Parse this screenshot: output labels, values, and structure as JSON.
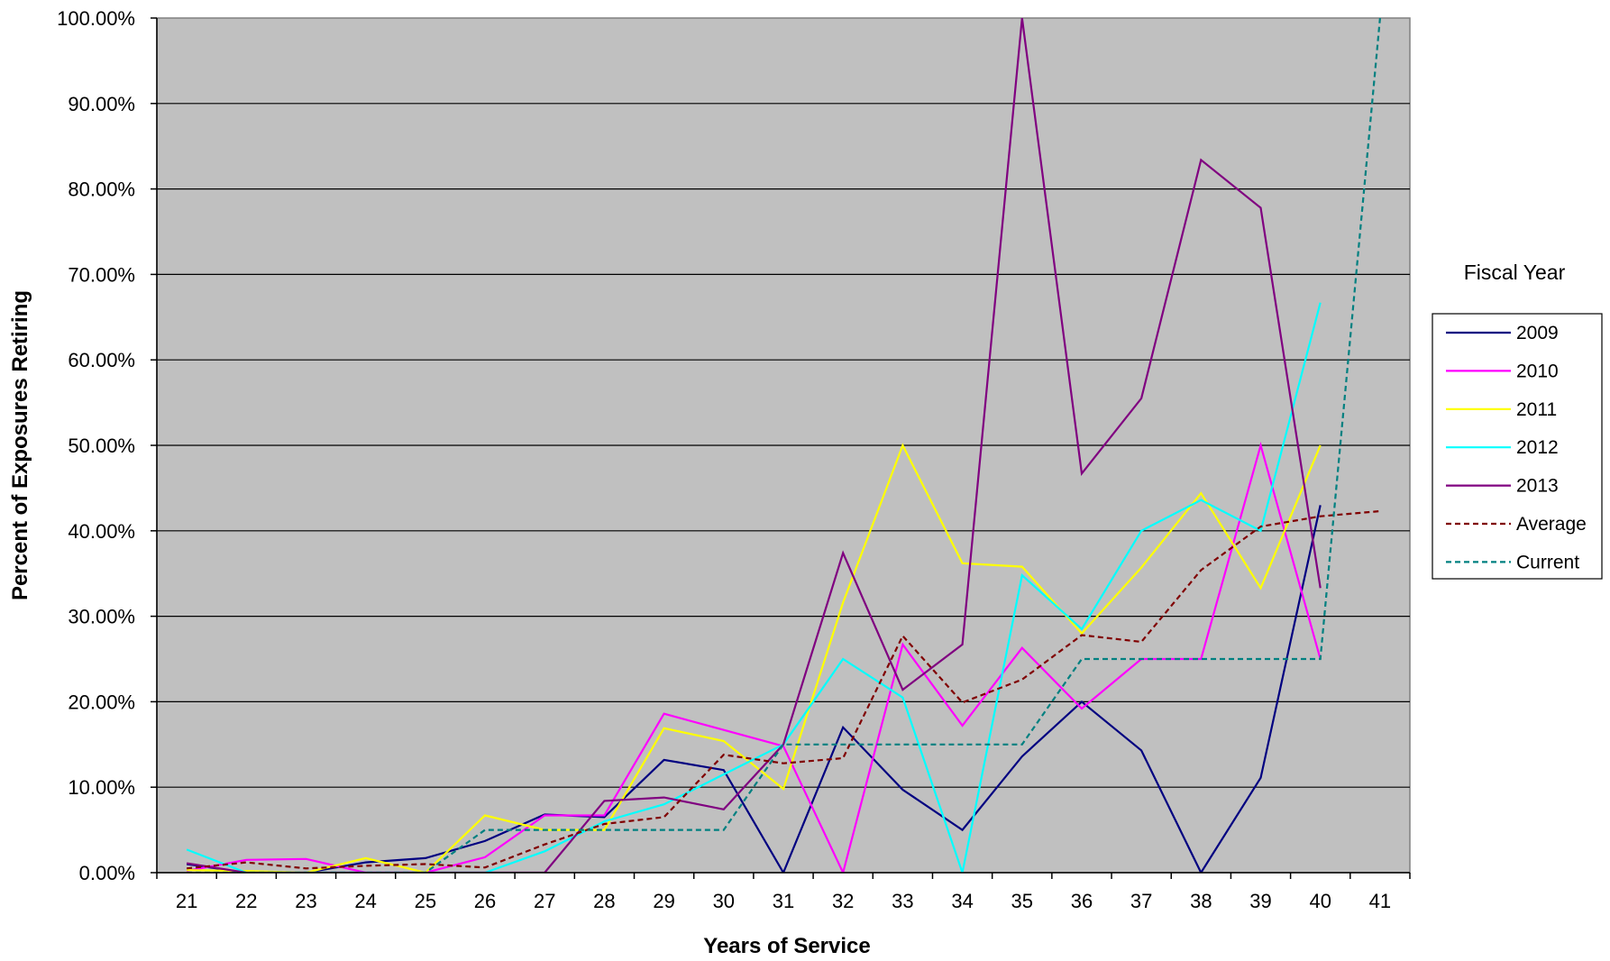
{
  "chart_data": {
    "type": "line",
    "title": "",
    "xlabel": "Years of Service",
    "ylabel": "Percent of Exposures Retiring",
    "categories": [
      "21",
      "22",
      "23",
      "24",
      "25",
      "26",
      "27",
      "28",
      "29",
      "30",
      "31",
      "32",
      "33",
      "34",
      "35",
      "36",
      "37",
      "38",
      "39",
      "40",
      "41"
    ],
    "y_ticks": [
      "0.00%",
      "10.00%",
      "20.00%",
      "30.00%",
      "40.00%",
      "50.00%",
      "60.00%",
      "70.00%",
      "80.00%",
      "90.00%",
      "100.00%"
    ],
    "ylim": [
      0,
      100
    ],
    "grid": true,
    "plot_background": "#c0c0c0",
    "legend": {
      "title": "Fiscal Year",
      "position": "right"
    },
    "series": [
      {
        "name": "2009",
        "color": "#000080",
        "dash": "solid",
        "values": [
          1.0,
          0.0,
          0.0,
          1.2,
          1.7,
          3.7,
          6.8,
          6.5,
          13.2,
          12.0,
          0.0,
          17.0,
          9.7,
          5.0,
          13.6,
          20.0,
          14.3,
          0.0,
          11.1,
          43.0,
          null
        ]
      },
      {
        "name": "2010",
        "color": "#ff00ff",
        "dash": "solid",
        "values": [
          0.2,
          1.5,
          1.6,
          0.0,
          0.0,
          1.8,
          6.7,
          6.7,
          18.6,
          16.7,
          14.8,
          0.0,
          26.7,
          17.2,
          26.3,
          19.2,
          25.0,
          25.0,
          50.0,
          25.0,
          null
        ]
      },
      {
        "name": "2011",
        "color": "#ffff00",
        "dash": "solid",
        "values": [
          0.3,
          0.2,
          0.0,
          1.7,
          0.0,
          6.7,
          5.0,
          5.0,
          16.9,
          15.4,
          9.8,
          31.6,
          50.0,
          36.2,
          35.8,
          28.0,
          35.7,
          44.4,
          33.3,
          50.0,
          null
        ]
      },
      {
        "name": "2012",
        "color": "#00ffff",
        "dash": "solid",
        "values": [
          2.7,
          0.0,
          0.0,
          0.0,
          0.0,
          0.0,
          2.5,
          6.0,
          8.0,
          11.5,
          15.0,
          25.0,
          20.5,
          0.0,
          34.8,
          28.5,
          40.0,
          43.6,
          40.0,
          66.7,
          null
        ]
      },
      {
        "name": "2013",
        "color": "#800080",
        "dash": "solid",
        "values": [
          1.1,
          0.0,
          0.0,
          0.0,
          0.0,
          0.0,
          0.0,
          8.4,
          8.8,
          7.4,
          15.0,
          37.4,
          21.4,
          26.7,
          100.0,
          46.7,
          55.5,
          83.4,
          77.8,
          33.3,
          null
        ]
      },
      {
        "name": "Average",
        "color": "#800000",
        "dash": "dashed",
        "values": [
          0.5,
          1.2,
          0.5,
          0.8,
          1.0,
          0.6,
          3.3,
          5.7,
          6.5,
          13.8,
          12.8,
          13.4,
          27.7,
          19.9,
          22.6,
          27.8,
          27.0,
          35.4,
          40.5,
          41.7,
          42.3
        ]
      },
      {
        "name": "Current",
        "color": "#008080",
        "dash": "dashed",
        "values": [
          0.0,
          0.0,
          0.0,
          0.0,
          0.0,
          5.0,
          5.0,
          5.0,
          5.0,
          5.0,
          15.0,
          15.0,
          15.0,
          15.0,
          15.0,
          25.0,
          25.0,
          25.0,
          25.0,
          25.0,
          100.0
        ]
      }
    ]
  }
}
